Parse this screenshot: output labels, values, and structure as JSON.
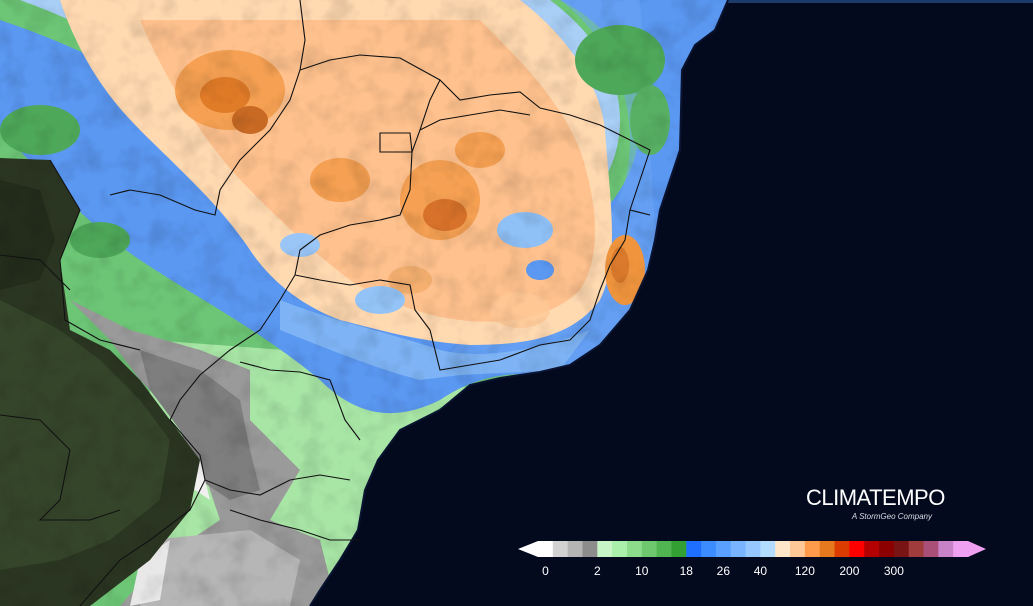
{
  "brand": {
    "name": "CLIMATEMPO",
    "subtitle": "A StormGeo Company"
  },
  "legend": {
    "colors": [
      "#ffffff",
      "#d2d2d2",
      "#b4b4b4",
      "#8c8c8c",
      "#c8f5c8",
      "#aaf0aa",
      "#8cdc8c",
      "#6ec86e",
      "#50b450",
      "#32a032",
      "#1e6eff",
      "#3c8cff",
      "#5aa0ff",
      "#78b4ff",
      "#96c8ff",
      "#b4dcff",
      "#ffe6c8",
      "#ffc896",
      "#ff9b4b",
      "#e6781e",
      "#dc3c00",
      "#ff0000",
      "#b40000",
      "#8c0000",
      "#781414",
      "#a03c3c",
      "#aa5078",
      "#c882c8",
      "#f0a0f0"
    ],
    "ticks": [
      {
        "label": "0",
        "i": 0.5
      },
      {
        "label": "2",
        "i": 4
      },
      {
        "label": "10",
        "i": 7
      },
      {
        "label": "18",
        "i": 10
      },
      {
        "label": "26",
        "i": 12.5
      },
      {
        "label": "40",
        "i": 15
      },
      {
        "label": "120",
        "i": 18
      },
      {
        "label": "200",
        "i": 21
      },
      {
        "label": "300",
        "i": 24
      }
    ]
  }
}
